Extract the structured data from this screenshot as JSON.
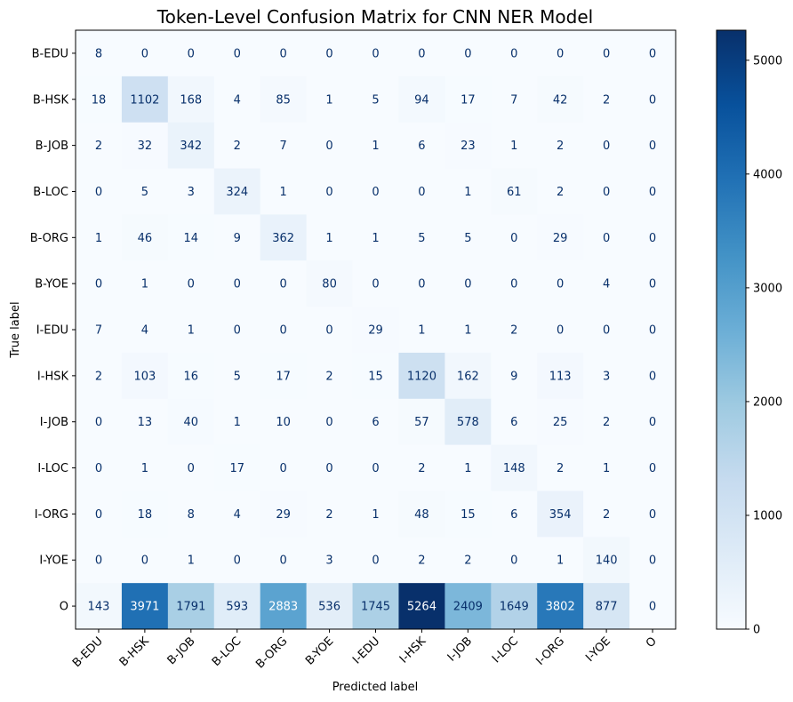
{
  "chart_data": {
    "type": "heatmap",
    "title": "Token-Level Confusion Matrix for CNN NER Model",
    "xlabel": "Predicted label",
    "ylabel": "True label",
    "labels": [
      "B-EDU",
      "B-HSK",
      "B-JOB",
      "B-LOC",
      "B-ORG",
      "B-YOE",
      "I-EDU",
      "I-HSK",
      "I-JOB",
      "I-LOC",
      "I-ORG",
      "I-YOE",
      "O"
    ],
    "matrix": [
      [
        8,
        0,
        0,
        0,
        0,
        0,
        0,
        0,
        0,
        0,
        0,
        0,
        0
      ],
      [
        18,
        1102,
        168,
        4,
        85,
        1,
        5,
        94,
        17,
        7,
        42,
        2,
        0
      ],
      [
        2,
        32,
        342,
        2,
        7,
        0,
        1,
        6,
        23,
        1,
        2,
        0,
        0
      ],
      [
        0,
        5,
        3,
        324,
        1,
        0,
        0,
        0,
        1,
        61,
        2,
        0,
        0
      ],
      [
        1,
        46,
        14,
        9,
        362,
        1,
        1,
        5,
        5,
        0,
        29,
        0,
        0
      ],
      [
        0,
        1,
        0,
        0,
        0,
        80,
        0,
        0,
        0,
        0,
        0,
        4,
        0
      ],
      [
        7,
        4,
        1,
        0,
        0,
        0,
        29,
        1,
        1,
        2,
        0,
        0,
        0
      ],
      [
        2,
        103,
        16,
        5,
        17,
        2,
        15,
        1120,
        162,
        9,
        113,
        3,
        0
      ],
      [
        0,
        13,
        40,
        1,
        10,
        0,
        6,
        57,
        578,
        6,
        25,
        2,
        0
      ],
      [
        0,
        1,
        0,
        17,
        0,
        0,
        0,
        2,
        1,
        148,
        2,
        1,
        0
      ],
      [
        0,
        18,
        8,
        4,
        29,
        2,
        1,
        48,
        15,
        6,
        354,
        2,
        0
      ],
      [
        0,
        0,
        1,
        0,
        0,
        3,
        0,
        2,
        2,
        0,
        1,
        140,
        0
      ],
      [
        143,
        3971,
        1791,
        593,
        2883,
        536,
        1745,
        5264,
        2409,
        1649,
        3802,
        877,
        0
      ]
    ],
    "colormap": "Blues",
    "colorbar": {
      "ticks": [
        0,
        1000,
        2000,
        3000,
        4000,
        5000
      ],
      "range": [
        0,
        5264
      ]
    },
    "colors": {
      "low": "#f7fbff",
      "high": "#08306b",
      "text_dark": "#08306b",
      "text_light": "#ffffff"
    }
  }
}
